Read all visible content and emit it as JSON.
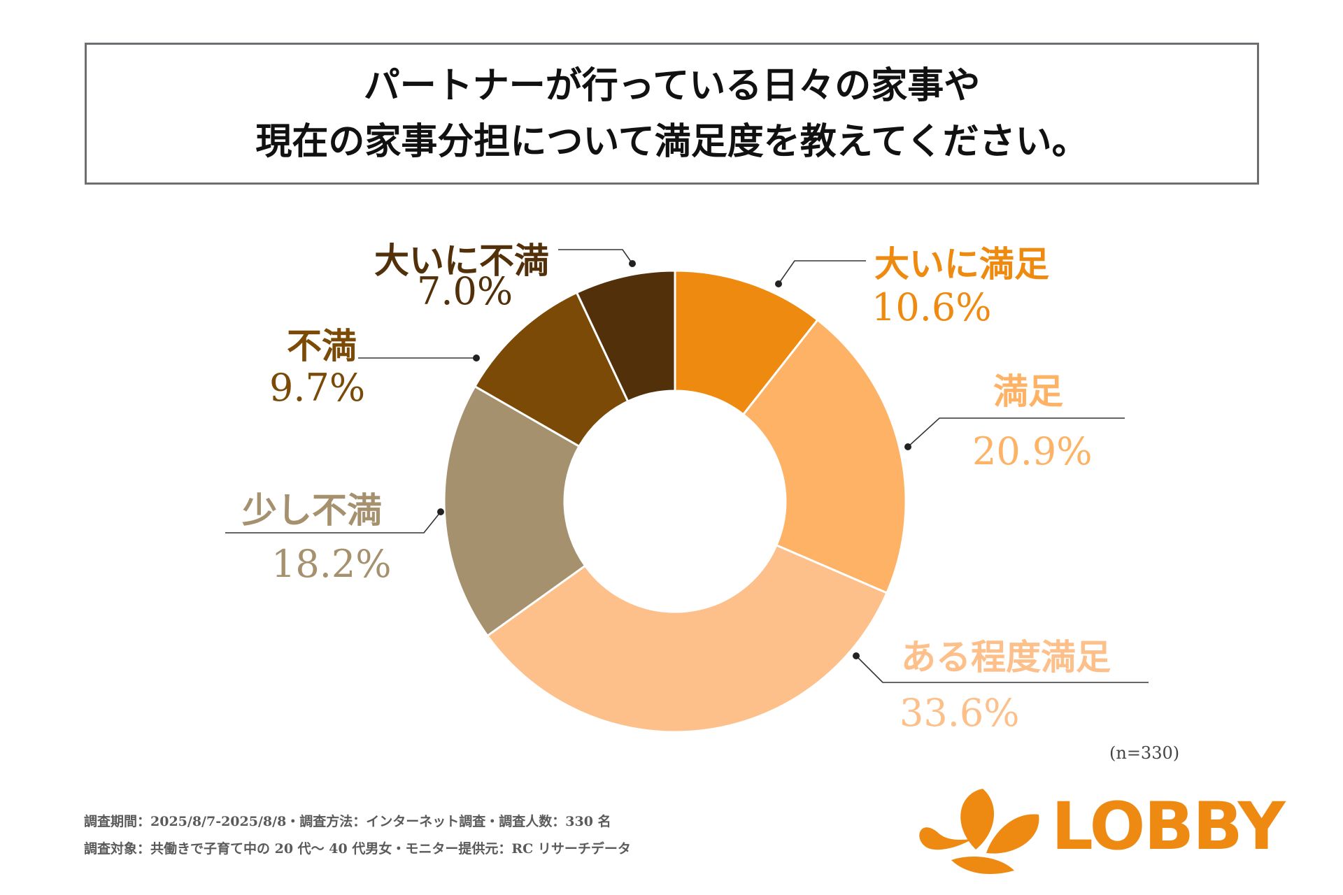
{
  "title": {
    "line1": "パートナーが行っている日々の家事や",
    "line2": "現在の家事分担について満足度を教えてください。"
  },
  "chart_data": {
    "type": "pie",
    "variant": "donut",
    "categories": [
      "大いに満足",
      "満足",
      "ある程度満足",
      "少し不満",
      "不満",
      "大いに不満"
    ],
    "values": [
      10.6,
      20.9,
      33.6,
      18.2,
      9.7,
      7.0
    ],
    "value_labels": [
      "10.6%",
      "20.9%",
      "33.6%",
      "18.2%",
      "9.7%",
      "7.0%"
    ],
    "colors": [
      "#ef8a10",
      "#fdb265",
      "#fdc08a",
      "#a6916f",
      "#7a4a06",
      "#52310a"
    ],
    "unit": "%"
  },
  "sample_size": "(n=330)",
  "footnotes": {
    "line1": "調査期間：2025/8/7-2025/8/8・調査方法：インターネット調査・調査人数：330 名",
    "line2": "調査対象：共働きで子育て中の 20 代〜 40 代男女・モニター提供元：RC リサーチデータ"
  },
  "brand": {
    "name": "LOBBY",
    "color": "#ee8a12",
    "icon": "leaf-logo-icon"
  }
}
